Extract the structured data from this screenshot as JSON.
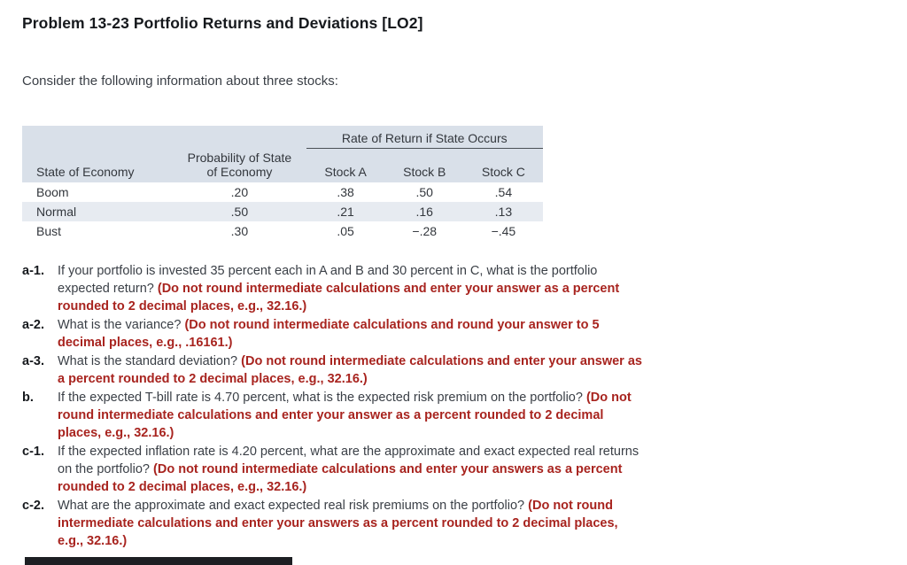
{
  "page": {
    "title": "Problem 13-23 Portfolio Returns and Deviations [LO2]",
    "intro": "Consider the following information about three stocks:"
  },
  "colors": {
    "emphasis_red": "#a8241f",
    "table_header_bg": "#d9e0e9",
    "table_stripe_bg": "#e7ebf1"
  },
  "table": {
    "span_header": "Rate of Return if State Occurs",
    "headers": {
      "state": "State of Economy",
      "prob_line1": "Probability of State",
      "prob_line2": "of Economy",
      "stock_a": "Stock A",
      "stock_b": "Stock B",
      "stock_c": "Stock C"
    },
    "rows": [
      {
        "state": "Boom",
        "prob": ".20",
        "stock_a": ".38",
        "stock_b": ".50",
        "stock_c": ".54"
      },
      {
        "state": "Normal",
        "prob": ".50",
        "stock_a": ".21",
        "stock_b": ".16",
        "stock_c": ".13"
      },
      {
        "state": "Bust",
        "prob": ".30",
        "stock_a": ".05",
        "stock_b": "−.28",
        "stock_c": "−.45"
      }
    ]
  },
  "questions": [
    {
      "label": "a-1.",
      "text": "If your portfolio is invested 35 percent each in A and B and 30 percent in C, what is the portfolio expected return? ",
      "red": "(Do not round intermediate calculations and enter your answer as a percent rounded to 2 decimal places, e.g., 32.16.)"
    },
    {
      "label": "a-2.",
      "text": "What is the variance? ",
      "red": "(Do not round intermediate calculations and round your answer to 5 decimal places, e.g., .16161.)"
    },
    {
      "label": "a-3.",
      "text": "What is the standard deviation? ",
      "red": "(Do not round intermediate calculations and enter your answer as a percent rounded to 2 decimal places, e.g., 32.16.)"
    },
    {
      "label": "b.",
      "text": "If the expected T-bill rate is 4.70 percent, what is the expected risk premium on the portfolio? ",
      "red": "(Do not round intermediate calculations and enter your answer as a percent rounded to 2 decimal places, e.g., 32.16.)"
    },
    {
      "label": "c-1.",
      "text": "If the expected inflation rate is 4.20 percent, what are the approximate and exact expected real returns on the portfolio? ",
      "red": "(Do not round intermediate calculations and enter your answers as a percent rounded to 2 decimal places, e.g., 32.16.)"
    },
    {
      "label": "c-2.",
      "text": "What are the approximate and exact expected real risk premiums on the portfolio? ",
      "red": "(Do not round intermediate calculations and enter your answers as a percent rounded to 2 decimal places, e.g., 32.16.)"
    }
  ]
}
